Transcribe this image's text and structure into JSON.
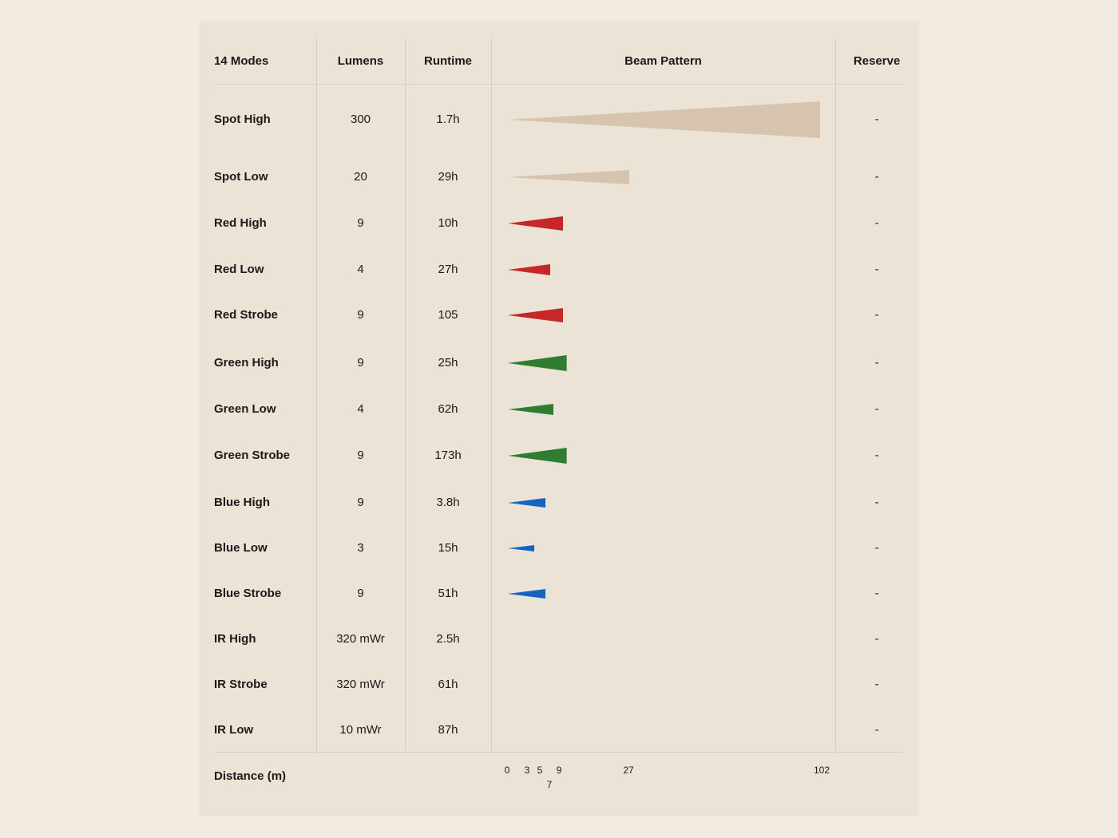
{
  "table": {
    "headers": {
      "modes": "14 Modes",
      "lumens": "Lumens",
      "runtime": "Runtime",
      "beam": "Beam Pattern",
      "reserve": "Reserve"
    },
    "footer_label": "Distance (m)"
  },
  "chart_data": {
    "type": "bar",
    "xlabel": "Distance (m)",
    "xticks": [
      0,
      3,
      5,
      7,
      9,
      27,
      102
    ],
    "xlim": [
      0,
      102
    ],
    "categories": [
      "Spot High",
      "Spot Low",
      "Red High",
      "Red Low",
      "Red Strobe",
      "Green High",
      "Green Low",
      "Green Strobe",
      "Blue High",
      "Blue Low",
      "Blue Strobe",
      "IR High",
      "IR Strobe",
      "IR Low"
    ],
    "rows": [
      {
        "mode": "Spot High",
        "lumens": "300",
        "runtime": "1.7h",
        "distance": 102,
        "color": "#d6c4ae",
        "reserve": "-"
      },
      {
        "mode": "Spot Low",
        "lumens": "20",
        "runtime": "29h",
        "distance": 27,
        "color": "#d6c4ae",
        "reserve": "-"
      },
      {
        "mode": "Red High",
        "lumens": "9",
        "runtime": "10h",
        "distance": 9,
        "color": "#c62828",
        "reserve": "-"
      },
      {
        "mode": "Red Low",
        "lumens": "4",
        "runtime": "27h",
        "distance": 7,
        "color": "#c62828",
        "reserve": "-"
      },
      {
        "mode": "Red Strobe",
        "lumens": "9",
        "runtime": "105",
        "distance": 9,
        "color": "#c62828",
        "reserve": "-"
      },
      {
        "mode": "Green High",
        "lumens": "9",
        "runtime": "25h",
        "distance": 10,
        "color": "#2e7d32",
        "reserve": "-"
      },
      {
        "mode": "Green Low",
        "lumens": "4",
        "runtime": "62h",
        "distance": 7.5,
        "color": "#2e7d32",
        "reserve": "-"
      },
      {
        "mode": "Green Strobe",
        "lumens": "9",
        "runtime": "173h",
        "distance": 10,
        "color": "#2e7d32",
        "reserve": "-"
      },
      {
        "mode": "Blue High",
        "lumens": "9",
        "runtime": "3.8h",
        "distance": 6,
        "color": "#1565c0",
        "reserve": "-"
      },
      {
        "mode": "Blue Low",
        "lumens": "3",
        "runtime": "15h",
        "distance": 4,
        "color": "#1565c0",
        "reserve": "-"
      },
      {
        "mode": "Blue Strobe",
        "lumens": "9",
        "runtime": "51h",
        "distance": 6,
        "color": "#1565c0",
        "reserve": "-"
      },
      {
        "mode": "IR High",
        "lumens": "320 mWr",
        "runtime": "2.5h",
        "distance": null,
        "color": "",
        "reserve": "-"
      },
      {
        "mode": "IR Strobe",
        "lumens": "320 mWr",
        "runtime": "61h",
        "distance": null,
        "color": "",
        "reserve": "-"
      },
      {
        "mode": "IR Low",
        "lumens": "10 mWr",
        "runtime": "87h",
        "distance": null,
        "color": "",
        "reserve": "-"
      }
    ]
  }
}
